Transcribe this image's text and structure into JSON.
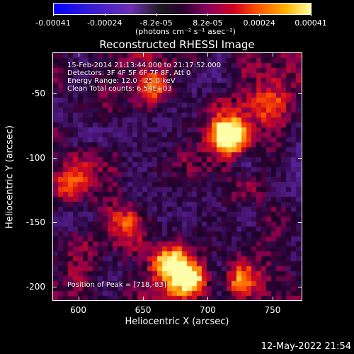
{
  "colorbar": {
    "ticks": [
      "-0.00041",
      "-0.00024",
      "-8.2e-05",
      "8.2e-05",
      "0.00024",
      "0.00041"
    ],
    "unit": "(photons cm⁻² s⁻¹ asec⁻²)",
    "colors": [
      "#0000ff",
      "#6a2fb0",
      "#1a1a1a",
      "#8a0060",
      "#d00020",
      "#ff5a00",
      "#ffb000",
      "#ffffa0"
    ]
  },
  "title": "Reconstructed RHESSI Image",
  "annotations": {
    "time": "15-Feb-2014 21:13:44.000 to 21:17:52.000",
    "detectors": "Detectors: 3F 4F 5F 6F 7F 8F, Att 0",
    "energy": "Energy Range: 12.0 - 25.0 keV",
    "method": "Clean     Total counts: 6.54E+03",
    "peak": "Position of Peak = [718,-83]"
  },
  "axes": {
    "xlabel": "Heliocentric X (arcsec)",
    "ylabel": "Heliocentric Y (arcsec)",
    "xticks": [
      "600",
      "650",
      "700",
      "750"
    ],
    "yticks": [
      "-50",
      "-100",
      "-150",
      "-200"
    ]
  },
  "date": "12-May-2022 21:54",
  "chart_data": {
    "type": "heatmap",
    "title": "Reconstructed RHESSI Image",
    "xlabel": "Heliocentric X (arcsec)",
    "ylabel": "Heliocentric Y (arcsec)",
    "xlim": [
      580,
      773
    ],
    "ylim": [
      -211,
      -18
    ],
    "colorbar_range": [
      -0.00041,
      0.00041
    ],
    "peak": [
      718,
      -83
    ],
    "hotspots": [
      {
        "x": 718,
        "y": -83,
        "level": 1.0
      },
      {
        "x": 685,
        "y": -195,
        "level": 0.9
      },
      {
        "x": 670,
        "y": -178,
        "level": 0.75
      },
      {
        "x": 655,
        "y": -45,
        "level": 0.6
      },
      {
        "x": 640,
        "y": -150,
        "level": 0.6
      },
      {
        "x": 750,
        "y": -60,
        "level": 0.5
      },
      {
        "x": 725,
        "y": -195,
        "level": 0.55
      },
      {
        "x": 595,
        "y": -120,
        "level": 0.5
      }
    ]
  }
}
